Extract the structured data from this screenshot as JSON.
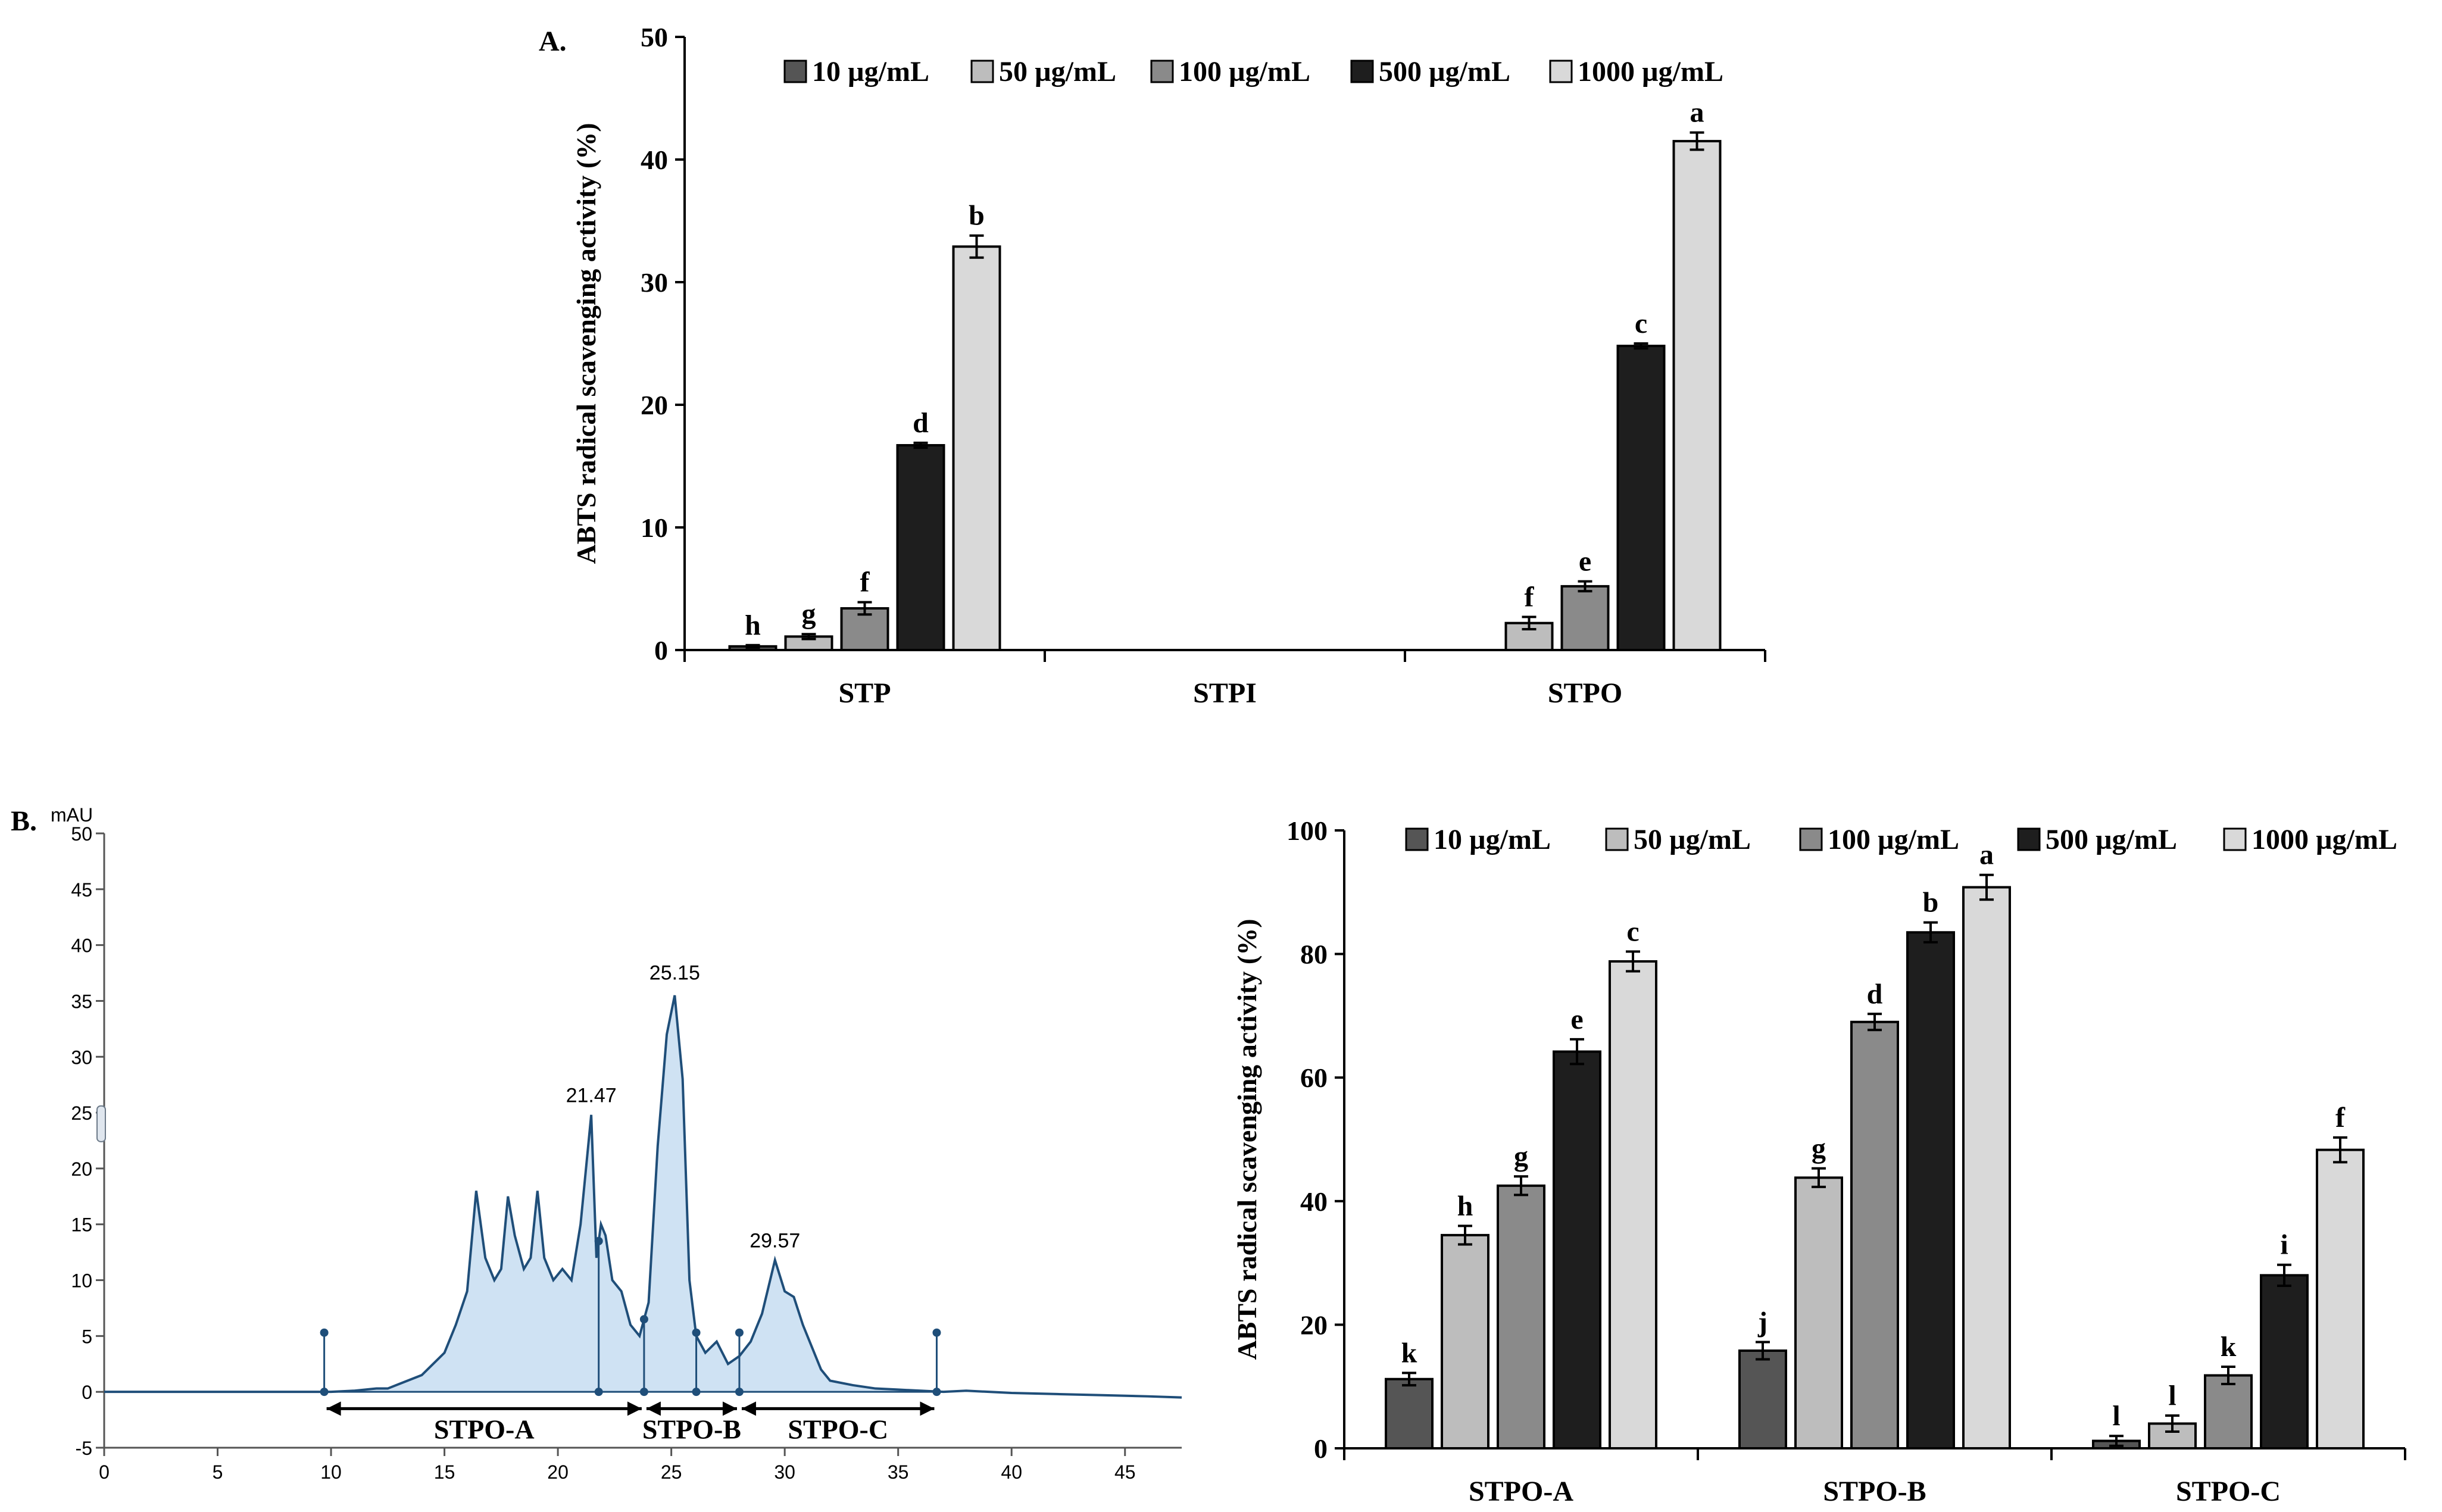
{
  "panels": {
    "a_label": "A.",
    "b_label": "B."
  },
  "chart_data": [
    {
      "id": "chartA",
      "type": "bar",
      "ylabel": "ABTS radical scavenging activity (%)",
      "ylim": [
        0,
        50
      ],
      "yticks": [
        0,
        10,
        20,
        30,
        40,
        50
      ],
      "categories": [
        "STP",
        "STPI",
        "STPO"
      ],
      "legend": [
        "10 µg/mL",
        "50 µg/mL",
        "100 µg/mL",
        "500 µg/mL",
        "1000 µg/mL"
      ],
      "colors": [
        "#555555",
        "#bdbdbd",
        "#8a8a8a",
        "#1e1e1e",
        "#d9d9d9"
      ],
      "series": [
        {
          "name": "10 µg/mL",
          "values": [
            0.3,
            null,
            null
          ],
          "errors": [
            0.1,
            null,
            null
          ],
          "letters": [
            "h",
            null,
            null
          ]
        },
        {
          "name": "50 µg/mL",
          "values": [
            1.1,
            null,
            2.2
          ],
          "errors": [
            0.2,
            null,
            0.5
          ],
          "letters": [
            "g",
            null,
            "f"
          ]
        },
        {
          "name": "100 µg/mL",
          "values": [
            3.4,
            null,
            5.2
          ],
          "errors": [
            0.5,
            null,
            0.4
          ],
          "letters": [
            "f",
            null,
            "e"
          ]
        },
        {
          "name": "500 µg/mL",
          "values": [
            16.7,
            null,
            24.8
          ],
          "errors": [
            0.2,
            null,
            0.2
          ],
          "letters": [
            "d",
            null,
            "c"
          ]
        },
        {
          "name": "1000 µg/mL",
          "values": [
            32.9,
            null,
            41.5
          ],
          "errors": [
            0.9,
            null,
            0.7
          ],
          "letters": [
            "b",
            null,
            "a"
          ]
        }
      ]
    },
    {
      "id": "chromatogram",
      "type": "line",
      "ylabel": "mAU",
      "xlim": [
        0,
        47.5
      ],
      "ylim": [
        -5,
        50
      ],
      "xticks": [
        0,
        5,
        10,
        15,
        20,
        25,
        30,
        35,
        40,
        45
      ],
      "yticks": [
        -5,
        0,
        5,
        10,
        15,
        20,
        25,
        30,
        35,
        40,
        45,
        50
      ],
      "peak_labels": [
        "21.47",
        "25.15",
        "29.57"
      ],
      "peak_label_positions": [
        [
          21.47,
          25.5
        ],
        [
          25.15,
          36.5
        ],
        [
          29.57,
          12.5
        ]
      ],
      "x": [
        0,
        9,
        10,
        11,
        12,
        12.5,
        13,
        14,
        15,
        15.5,
        16,
        16.4,
        16.8,
        17.2,
        17.5,
        17.8,
        18.1,
        18.5,
        18.8,
        19.1,
        19.4,
        19.8,
        20.2,
        20.6,
        21.0,
        21.47,
        21.7,
        21.9,
        22.1,
        22.4,
        22.8,
        23.2,
        23.6,
        24.0,
        24.4,
        24.8,
        25.15,
        25.5,
        25.8,
        26.1,
        26.5,
        27.0,
        27.5,
        28.0,
        28.5,
        29.0,
        29.57,
        30.0,
        30.4,
        30.8,
        31.2,
        31.6,
        32.0,
        33,
        34,
        35,
        36,
        37,
        38,
        40,
        42,
        44,
        46,
        47.5
      ],
      "y": [
        0,
        0,
        0,
        0.1,
        0.3,
        0.3,
        0.7,
        1.5,
        3.5,
        6,
        9,
        18,
        12,
        10,
        11,
        17.5,
        14,
        11,
        12,
        18,
        12,
        10,
        11,
        10,
        15,
        24.8,
        12,
        15,
        14,
        10,
        9,
        6,
        5,
        8,
        22,
        32,
        35.5,
        28,
        10,
        5,
        3.5,
        4.5,
        2.5,
        3.2,
        4.5,
        7,
        11.8,
        9,
        8.5,
        6,
        4,
        2,
        1,
        0.6,
        0.3,
        0.2,
        0.1,
        0,
        0.1,
        -0.1,
        -0.2,
        -0.3,
        -0.4,
        -0.5
      ],
      "integration_markers": [
        9.7,
        21.8,
        23.8,
        26.1,
        28.0,
        36.7
      ],
      "fractions": [
        {
          "label": "STPO-A",
          "range": [
            9.7,
            23.8
          ]
        },
        {
          "label": "STPO-B",
          "range": [
            23.8,
            28.0
          ]
        },
        {
          "label": "STPO-C",
          "range": [
            28.0,
            36.7
          ]
        }
      ]
    },
    {
      "id": "chartB",
      "type": "bar",
      "ylabel": "ABTS radical scavenging activity (%)",
      "ylim": [
        0,
        100
      ],
      "yticks": [
        0,
        20,
        40,
        60,
        80,
        100
      ],
      "categories": [
        "STPO-A",
        "STPO-B",
        "STPO-C"
      ],
      "legend": [
        "10 µg/mL",
        "50 µg/mL",
        "100 µg/mL",
        "500 µg/mL",
        "1000 µg/mL"
      ],
      "colors": [
        "#555555",
        "#bdbdbd",
        "#8a8a8a",
        "#1e1e1e",
        "#d9d9d9"
      ],
      "series": [
        {
          "name": "10 µg/mL",
          "values": [
            11.2,
            15.8,
            1.2
          ],
          "errors": [
            1.0,
            1.4,
            0.8
          ],
          "letters": [
            "k",
            "j",
            "l"
          ]
        },
        {
          "name": "50 µg/mL",
          "values": [
            34.5,
            43.8,
            4.0
          ],
          "errors": [
            1.5,
            1.5,
            1.3
          ],
          "letters": [
            "h",
            "g",
            "l"
          ]
        },
        {
          "name": "100 µg/mL",
          "values": [
            42.5,
            69.0,
            11.8
          ],
          "errors": [
            1.5,
            1.3,
            1.4
          ],
          "letters": [
            "g",
            "d",
            "k"
          ]
        },
        {
          "name": "500 µg/mL",
          "values": [
            64.2,
            83.5,
            28.0
          ],
          "errors": [
            2.0,
            1.6,
            1.7
          ],
          "letters": [
            "e",
            "b",
            "i"
          ]
        },
        {
          "name": "1000 µg/mL",
          "values": [
            78.8,
            90.8,
            48.3
          ],
          "errors": [
            1.6,
            2.0,
            2.0
          ],
          "letters": [
            "c",
            "a",
            "f"
          ]
        }
      ]
    }
  ]
}
